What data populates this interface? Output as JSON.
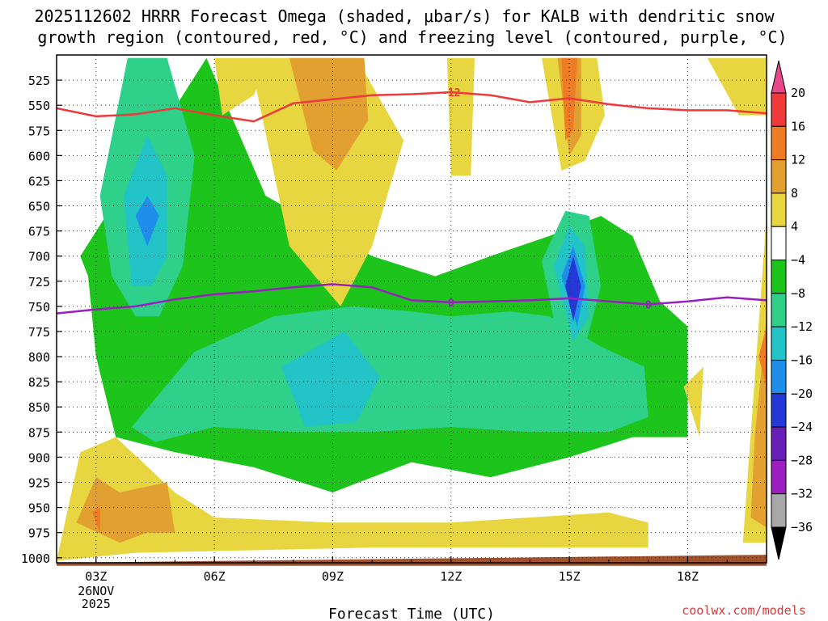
{
  "chart_data": {
    "type": "contour",
    "title_lines": [
      "2025112602 HRRR Forecast Omega (shaded, μbar/s) for KALB with dendritic snow",
      "growth region (contoured, red, °C) and freezing level (contoured, purple, °C)"
    ],
    "xlabel": "Forecast Time (UTC)",
    "credit": "coolwx.com/models",
    "x_ticks": [
      "03Z",
      "06Z",
      "09Z",
      "12Z",
      "15Z",
      "18Z"
    ],
    "x_date": [
      "26NOV",
      "2025"
    ],
    "xlim_hours": [
      2,
      20
    ],
    "y_ticks": [
      525,
      550,
      575,
      600,
      625,
      650,
      675,
      700,
      725,
      750,
      775,
      800,
      825,
      850,
      875,
      900,
      925,
      950,
      975,
      1000
    ],
    "ylim_hPa": [
      500,
      1005
    ],
    "colorbar": {
      "labels": [
        "20",
        "16",
        "12",
        "8",
        "4",
        "−4",
        "−8",
        "−12",
        "−16",
        "−20",
        "−24",
        "−28",
        "−32",
        "−36"
      ],
      "colors": [
        "#e8488a",
        "#ee3a3a",
        "#ef7b22",
        "#e2a030",
        "#e8d640",
        "#ffffff",
        "#1cc41c",
        "#2ed08a",
        "#22c4c8",
        "#1e8eea",
        "#2438d8",
        "#6a1eb8",
        "#9a1ec0",
        "#a8a8a8",
        "#000000"
      ]
    },
    "contour_labels": {
      "dendritic": "-12",
      "freezing": "0"
    },
    "dendritic_line": {
      "color": "#ee3a3a",
      "hours": [
        2,
        3,
        4,
        5,
        6,
        7,
        8,
        9,
        10,
        11,
        12,
        13,
        14,
        15,
        16,
        17,
        18,
        19,
        20
      ],
      "hPa": [
        553,
        561,
        559,
        553,
        560,
        566,
        548,
        544,
        540,
        539,
        537,
        540,
        547,
        543,
        549,
        553,
        555,
        555,
        558
      ]
    },
    "freezing_line": {
      "color": "#9a1ec0",
      "hours": [
        2,
        3,
        4,
        5,
        6,
        7,
        8,
        9,
        10,
        11,
        12,
        13,
        14,
        15,
        16,
        17,
        18,
        19,
        20
      ],
      "hPa": [
        757,
        753,
        750,
        743,
        738,
        735,
        731,
        728,
        731,
        744,
        746,
        745,
        744,
        742,
        745,
        748,
        745,
        741,
        744
      ]
    },
    "omega_regions": [
      {
        "name": "upper-left-white-gap",
        "fill": "#ffffff",
        "hours": [
          2,
          2.8,
          2.8,
          2
        ],
        "hPa": [
          503,
          503,
          640,
          640
        ]
      },
      {
        "name": "green-left-block",
        "fill": "#1cc41c",
        "hours": [
          2.6,
          5.8,
          7.3,
          10.0,
          11.6,
          13.0,
          14.5,
          15.8,
          16.6,
          17.3,
          18.0,
          18.0,
          16.6,
          15.0,
          13.0,
          11.0,
          9.0,
          7.0,
          5.0,
          3.5,
          3.0,
          2.8,
          2.6
        ],
        "hPa": [
          700,
          503,
          640,
          700,
          720,
          700,
          680,
          660,
          680,
          745,
          770,
          880,
          880,
          900,
          920,
          905,
          935,
          910,
          895,
          880,
          800,
          720,
          700
        ]
      },
      {
        "name": "teal-upper-left",
        "fill": "#2ed08a",
        "hours": [
          3.1,
          3.8,
          4.8,
          5.5,
          5.2,
          4.6,
          4.0,
          3.4,
          3.1
        ],
        "hPa": [
          640,
          503,
          503,
          600,
          710,
          760,
          760,
          720,
          640
        ]
      },
      {
        "name": "cyan-upper-left",
        "fill": "#22c4c8",
        "hours": [
          3.7,
          4.3,
          4.8,
          4.8,
          4.4,
          3.9,
          3.7
        ],
        "hPa": [
          640,
          580,
          620,
          700,
          730,
          730,
          640
        ]
      },
      {
        "name": "blue-left-core",
        "fill": "#1e8eea",
        "hours": [
          4.0,
          4.3,
          4.6,
          4.3,
          4.0
        ],
        "hPa": [
          660,
          640,
          660,
          690,
          660
        ]
      },
      {
        "name": "teal-lower-band",
        "fill": "#2ed08a",
        "hours": [
          3.9,
          5.5,
          7.5,
          9.5,
          11.0,
          12.0,
          13.5,
          14.5,
          15.8,
          16.9,
          17.0,
          16.0,
          14.0,
          12.0,
          10.0,
          8.0,
          6.0,
          4.5,
          3.9
        ],
        "hPa": [
          870,
          795,
          760,
          750,
          755,
          760,
          755,
          760,
          790,
          810,
          860,
          875,
          875,
          870,
          875,
          875,
          870,
          885,
          870
        ]
      },
      {
        "name": "cyan-lower-band",
        "fill": "#22c4c8",
        "hours": [
          7.7,
          9.3,
          10.2,
          9.6,
          8.3,
          7.7
        ],
        "hPa": [
          810,
          775,
          820,
          865,
          870,
          810
        ]
      },
      {
        "name": "teal-15z-column",
        "fill": "#2ed08a",
        "hours": [
          14.3,
          14.9,
          15.5,
          15.8,
          15.4,
          14.8,
          14.3
        ],
        "hPa": [
          705,
          655,
          660,
          730,
          790,
          800,
          705
        ]
      },
      {
        "name": "cyan-15z-column",
        "fill": "#22c4c8",
        "hours": [
          14.6,
          15.0,
          15.4,
          15.5,
          15.1,
          14.6
        ],
        "hPa": [
          710,
          670,
          690,
          760,
          785,
          710
        ]
      },
      {
        "name": "blue-15z-core",
        "fill": "#1e8eea",
        "hours": [
          14.8,
          15.1,
          15.4,
          15.2,
          14.8
        ],
        "hPa": [
          720,
          690,
          730,
          770,
          720
        ]
      },
      {
        "name": "navy-15z-core",
        "fill": "#2438d8",
        "hours": [
          14.9,
          15.1,
          15.3,
          15.1,
          14.9
        ],
        "hPa": [
          730,
          700,
          730,
          765,
          730
        ]
      },
      {
        "name": "yellow-upper-mid",
        "fill": "#e8d640",
        "hours": [
          6.9,
          9.6,
          10.8,
          10.0,
          9.2,
          7.9,
          6.9
        ],
        "hPa": [
          503,
          503,
          585,
          690,
          750,
          690,
          503
        ]
      },
      {
        "name": "orange-upper-mid",
        "fill": "#e2a030",
        "hours": [
          7.9,
          9.8,
          9.9,
          9.1,
          8.5,
          7.9
        ],
        "hPa": [
          503,
          503,
          565,
          615,
          595,
          503
        ]
      },
      {
        "name": "yellow-upper-left-small",
        "fill": "#e8d640",
        "hours": [
          6.0,
          7.4,
          7.0,
          6.2,
          6.0
        ],
        "hPa": [
          503,
          503,
          540,
          560,
          503
        ]
      },
      {
        "name": "yellow-12z-column",
        "fill": "#e8d640",
        "hours": [
          11.9,
          12.6,
          12.5,
          12.0,
          11.9
        ],
        "hPa": [
          503,
          503,
          620,
          620,
          503
        ]
      },
      {
        "name": "yellow-15z-top",
        "fill": "#e8d640",
        "hours": [
          14.3,
          15.7,
          15.9,
          15.4,
          14.8,
          14.3
        ],
        "hPa": [
          503,
          503,
          560,
          605,
          615,
          503
        ]
      },
      {
        "name": "orange-15z-top",
        "fill": "#e2a030",
        "hours": [
          14.7,
          15.3,
          15.3,
          15.0,
          14.7
        ],
        "hPa": [
          503,
          503,
          580,
          600,
          503
        ]
      },
      {
        "name": "orange2-15z-top",
        "fill": "#ef7b22",
        "hours": [
          14.8,
          15.2,
          15.1,
          14.9,
          14.8
        ],
        "hPa": [
          503,
          503,
          575,
          585,
          503
        ]
      },
      {
        "name": "yellow-upper-right",
        "fill": "#e8d640",
        "hours": [
          18.5,
          20.0,
          20.0,
          19.3,
          18.5
        ],
        "hPa": [
          503,
          503,
          560,
          560,
          503
        ]
      },
      {
        "name": "yellow-lower-right-mid",
        "fill": "#e8d640",
        "hours": [
          17.9,
          18.4,
          18.3,
          17.9
        ],
        "hPa": [
          830,
          810,
          880,
          830
        ]
      },
      {
        "name": "yellow-right-edge",
        "fill": "#e8d640",
        "hours": [
          19.4,
          20.0,
          20.0,
          19.4,
          19.4
        ],
        "hPa": [
          985,
          660,
          985,
          985,
          985
        ]
      },
      {
        "name": "orange-right-edge",
        "fill": "#e2a030",
        "hours": [
          19.7,
          20.0,
          20.0,
          19.6,
          19.7
        ],
        "hPa": [
          880,
          760,
          970,
          960,
          880
        ]
      },
      {
        "name": "orange2-right-edge",
        "fill": "#ef7b22",
        "hours": [
          19.8,
          20.0,
          20.0,
          19.8
        ],
        "hPa": [
          800,
          770,
          830,
          800
        ]
      },
      {
        "name": "yellow-lower-left",
        "fill": "#e8d640",
        "hours": [
          2.0,
          2.6,
          3.5,
          5.0,
          6.0,
          9.0,
          12.0,
          14.0,
          16.0,
          17.0,
          17.0,
          10.0,
          4.0,
          2.0,
          2.0
        ],
        "hPa": [
          1003,
          895,
          880,
          935,
          960,
          965,
          965,
          960,
          955,
          965,
          990,
          990,
          995,
          1003,
          1003
        ]
      },
      {
        "name": "orange-lower-left",
        "fill": "#e2a030",
        "hours": [
          2.5,
          3.0,
          3.6,
          4.8,
          5.0,
          4.3,
          3.6,
          2.5
        ],
        "hPa": [
          965,
          920,
          935,
          925,
          975,
          975,
          985,
          965
        ]
      },
      {
        "name": "orange2-lower-left",
        "fill": "#ef7b22",
        "hours": [
          2.9,
          3.1,
          3.1,
          2.9
        ],
        "hPa": [
          955,
          950,
          975,
          955
        ]
      },
      {
        "name": "ground",
        "fill": "#a0522d",
        "hours": [
          2.0,
          20.0,
          20.0,
          2.0
        ],
        "hPa": [
          1005,
          997,
          1008,
          1008
        ]
      }
    ]
  }
}
